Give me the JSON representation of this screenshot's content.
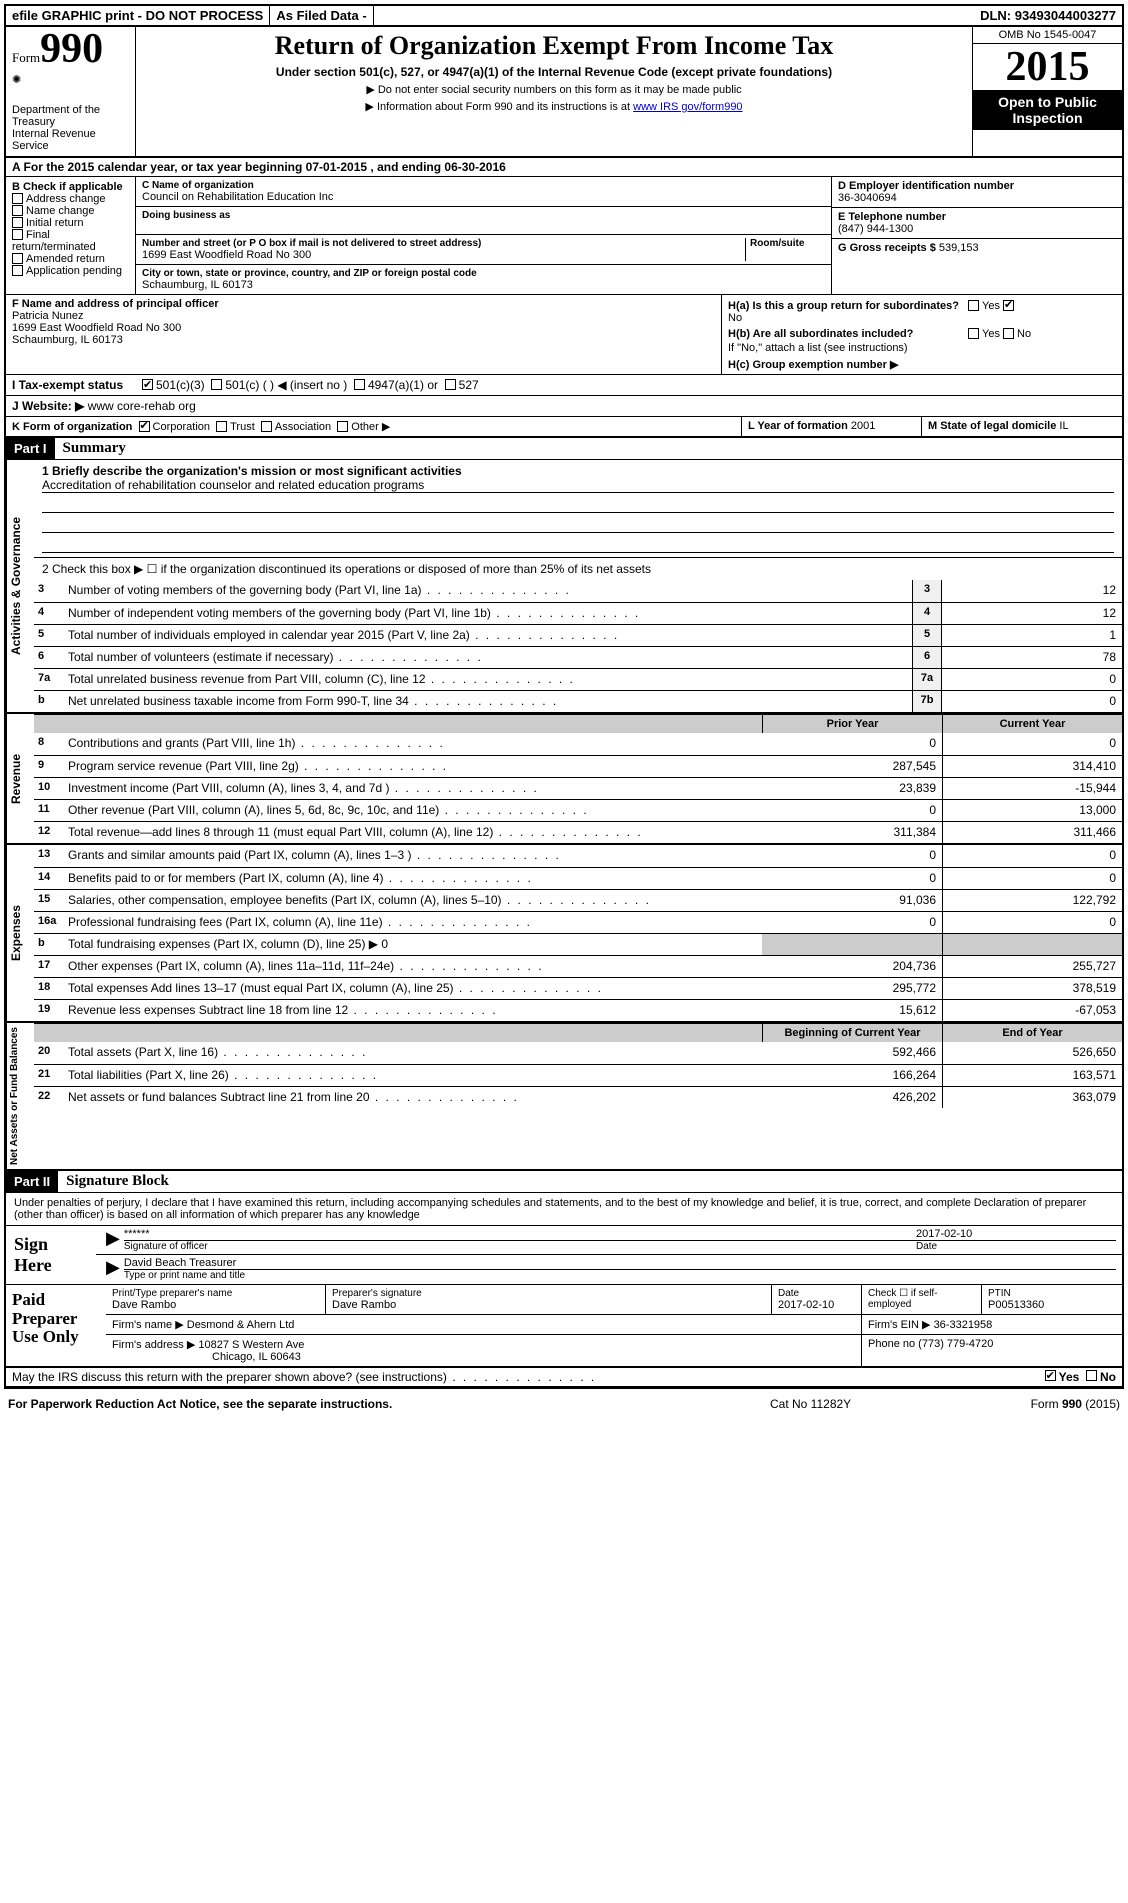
{
  "topbar": {
    "efile": "efile GRAPHIC print - DO NOT PROCESS",
    "asfiled": "As Filed Data -",
    "dln_label": "DLN:",
    "dln": "93493044003277"
  },
  "header": {
    "form_word": "Form",
    "form_num": "990",
    "dept": "Department of the Treasury",
    "irs": "Internal Revenue Service",
    "title": "Return of Organization Exempt From Income Tax",
    "sub": "Under section 501(c), 527, or 4947(a)(1) of the Internal Revenue Code (except private foundations)",
    "bullet1": "▶ Do not enter social security numbers on this form as it may be made public",
    "bullet2_pre": "▶ Information about Form 990 and its instructions is at ",
    "bullet2_link": "www IRS gov/form990",
    "omb": "OMB No 1545-0047",
    "year": "2015",
    "inspect1": "Open to Public",
    "inspect2": "Inspection"
  },
  "rowA": {
    "text_pre": "A  For the 2015 calendar year, or tax year beginning ",
    "begin": "07-01-2015",
    "mid": " , and ending ",
    "end": "06-30-2016"
  },
  "colB": {
    "head": "B Check if applicable",
    "items": [
      "Address change",
      "Name change",
      "Initial return",
      "Final return/terminated",
      "Amended return",
      "Application pending"
    ]
  },
  "colC": {
    "name_label": "C Name of organization",
    "name": "Council on Rehabilitation Education Inc",
    "dba_label": "Doing business as",
    "dba": "",
    "street_label": "Number and street (or P O  box if mail is not delivered to street address)",
    "room_label": "Room/suite",
    "street": "1699 East Woodfield Road No 300",
    "city_label": "City or town, state or province, country, and ZIP or foreign postal code",
    "city": "Schaumburg, IL  60173"
  },
  "colDEG": {
    "d_label": "D Employer identification number",
    "d_val": "36-3040694",
    "e_label": "E Telephone number",
    "e_val": "(847) 944-1300",
    "g_label": "G Gross receipts $",
    "g_val": "539,153"
  },
  "rowF": {
    "label": "F Name and address of principal officer",
    "name": "Patricia Nunez",
    "street": "1699 East Woodfield Road No 300",
    "city": "Schaumburg, IL  60173"
  },
  "rowH": {
    "ha_label": "H(a)  Is this a group return for subordinates?",
    "ha_no": "No",
    "hb_label": "H(b)  Are all subordinates included?",
    "hb_note": "If \"No,\" attach a list  (see instructions)",
    "hc_label": "H(c)  Group exemption number ▶",
    "yes": "Yes",
    "no": "No"
  },
  "rowI": {
    "label": "I   Tax-exempt status",
    "opts": [
      "501(c)(3)",
      "501(c) (  ) ◀ (insert no )",
      "4947(a)(1) or",
      "527"
    ]
  },
  "rowJ": {
    "label": "J  Website: ▶",
    "val": "www core-rehab org"
  },
  "rowK": {
    "label": "K Form of organization",
    "opts": [
      "Corporation",
      "Trust",
      "Association",
      "Other ▶"
    ],
    "l_label": "L Year of formation",
    "l_val": "2001",
    "m_label": "M State of legal domicile",
    "m_val": "IL"
  },
  "partI": {
    "tag": "Part I",
    "title": "Summary",
    "l1_label": "1 Briefly describe the organization's mission or most significant activities",
    "l1_val": "Accreditation of rehabilitation counselor and related education programs",
    "l2": "2  Check this box ▶ ☐ if the organization discontinued its operations or disposed of more than 25% of its net assets"
  },
  "gov_lines": [
    {
      "n": "3",
      "d": "Number of voting members of the governing body (Part VI, line 1a)",
      "k": "3",
      "v": "12"
    },
    {
      "n": "4",
      "d": "Number of independent voting members of the governing body (Part VI, line 1b)",
      "k": "4",
      "v": "12"
    },
    {
      "n": "5",
      "d": "Total number of individuals employed in calendar year 2015 (Part V, line 2a)",
      "k": "5",
      "v": "1"
    },
    {
      "n": "6",
      "d": "Total number of volunteers (estimate if necessary)",
      "k": "6",
      "v": "78"
    },
    {
      "n": "7a",
      "d": "Total unrelated business revenue from Part VIII, column (C), line 12",
      "k": "7a",
      "v": "0"
    },
    {
      "n": "b",
      "d": "Net unrelated business taxable income from Form 990-T, line 34",
      "k": "7b",
      "v": "0"
    }
  ],
  "rev_head": {
    "h1": "Prior Year",
    "h2": "Current Year"
  },
  "rev_lines": [
    {
      "n": "8",
      "d": "Contributions and grants (Part VIII, line 1h)",
      "p": "0",
      "c": "0"
    },
    {
      "n": "9",
      "d": "Program service revenue (Part VIII, line 2g)",
      "p": "287,545",
      "c": "314,410"
    },
    {
      "n": "10",
      "d": "Investment income (Part VIII, column (A), lines 3, 4, and 7d )",
      "p": "23,839",
      "c": "-15,944"
    },
    {
      "n": "11",
      "d": "Other revenue (Part VIII, column (A), lines 5, 6d, 8c, 9c, 10c, and 11e)",
      "p": "0",
      "c": "13,000"
    },
    {
      "n": "12",
      "d": "Total revenue—add lines 8 through 11 (must equal Part VIII, column (A), line 12)",
      "p": "311,384",
      "c": "311,466"
    }
  ],
  "exp_lines": [
    {
      "n": "13",
      "d": "Grants and similar amounts paid (Part IX, column (A), lines 1–3 )",
      "p": "0",
      "c": "0"
    },
    {
      "n": "14",
      "d": "Benefits paid to or for members (Part IX, column (A), line 4)",
      "p": "0",
      "c": "0"
    },
    {
      "n": "15",
      "d": "Salaries, other compensation, employee benefits (Part IX, column (A), lines 5–10)",
      "p": "91,036",
      "c": "122,792"
    },
    {
      "n": "16a",
      "d": "Professional fundraising fees (Part IX, column (A), line 11e)",
      "p": "0",
      "c": "0"
    },
    {
      "n": "b",
      "d": "Total fundraising expenses (Part IX, column (D), line 25) ▶ 0",
      "p": "",
      "c": "",
      "gray": true
    },
    {
      "n": "17",
      "d": "Other expenses (Part IX, column (A), lines 11a–11d, 11f–24e)",
      "p": "204,736",
      "c": "255,727"
    },
    {
      "n": "18",
      "d": "Total expenses  Add lines 13–17 (must equal Part IX, column (A), line 25)",
      "p": "295,772",
      "c": "378,519"
    },
    {
      "n": "19",
      "d": "Revenue less expenses  Subtract line 18 from line 12",
      "p": "15,612",
      "c": "-67,053"
    }
  ],
  "na_head": {
    "h1": "Beginning of Current Year",
    "h2": "End of Year"
  },
  "na_lines": [
    {
      "n": "20",
      "d": "Total assets (Part X, line 16)",
      "p": "592,466",
      "c": "526,650"
    },
    {
      "n": "21",
      "d": "Total liabilities (Part X, line 26)",
      "p": "166,264",
      "c": "163,571"
    },
    {
      "n": "22",
      "d": "Net assets or fund balances  Subtract line 21 from line 20",
      "p": "426,202",
      "c": "363,079"
    }
  ],
  "vtabs": {
    "gov": "Activities & Governance",
    "rev": "Revenue",
    "exp": "Expenses",
    "na": "Net Assets or Fund Balances"
  },
  "partII": {
    "tag": "Part II",
    "title": "Signature Block",
    "perjury": "Under penalties of perjury, I declare that I have examined this return, including accompanying schedules and statements, and to the best of my knowledge and belief, it is true, correct, and complete  Declaration of preparer (other than officer) is based on all information of which preparer has any knowledge"
  },
  "sign": {
    "label1": "Sign",
    "label2": "Here",
    "stars": "******",
    "sig_label": "Signature of officer",
    "date": "2017-02-10",
    "date_label": "Date",
    "name": "David Beach Treasurer",
    "name_label": "Type or print name and title"
  },
  "prep": {
    "label1": "Paid",
    "label2": "Preparer",
    "label3": "Use Only",
    "pname_label": "Print/Type preparer's name",
    "pname": "Dave Rambo",
    "psig_label": "Preparer's signature",
    "psig": "Dave Rambo",
    "pdate_label": "Date",
    "pdate": "2017-02-10",
    "check_label": "Check ☐ if self-employed",
    "ptin_label": "PTIN",
    "ptin": "P00513360",
    "firm_label": "Firm's name    ▶",
    "firm": "Desmond & Ahern Ltd",
    "ein_label": "Firm's EIN ▶",
    "ein": "36-3321958",
    "addr_label": "Firm's address ▶",
    "addr1": "10827 S Western Ave",
    "addr2": "Chicago, IL  60643",
    "phone_label": "Phone no",
    "phone": "(773) 779-4720"
  },
  "may_irs": {
    "text": "May the IRS discuss this return with the preparer shown above? (see instructions)",
    "yes": "Yes",
    "no": "No"
  },
  "footer": {
    "l": "For Paperwork Reduction Act Notice, see the separate instructions.",
    "m": "Cat No 11282Y",
    "r": "Form 990 (2015)"
  }
}
